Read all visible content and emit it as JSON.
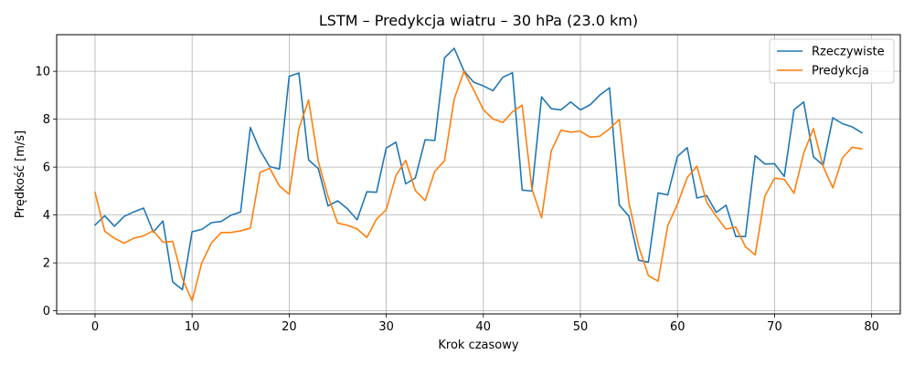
{
  "chart_data": {
    "type": "line",
    "title": "LSTM – Predykcja wiatru – 30 hPa (23.0 km)",
    "xlabel": "Krok czasowy",
    "ylabel": "Prędkość [m/s]",
    "xlim": [
      -3.95,
      82.95
    ],
    "ylim": [
      -0.13,
      11.53
    ],
    "xticks": [
      0,
      10,
      20,
      30,
      40,
      50,
      60,
      70,
      80
    ],
    "yticks": [
      0,
      2,
      4,
      6,
      8,
      10
    ],
    "grid": true,
    "legend_position": "top-right",
    "series": [
      {
        "name": "Rzeczywiste",
        "color": "#1f77b4",
        "values": [
          3.58,
          3.97,
          3.53,
          3.94,
          4.13,
          4.29,
          3.29,
          3.75,
          1.21,
          0.88,
          3.3,
          3.4,
          3.68,
          3.73,
          3.99,
          4.13,
          7.65,
          6.7,
          6.02,
          5.92,
          9.79,
          9.93,
          6.3,
          5.94,
          4.38,
          4.59,
          4.26,
          3.8,
          4.97,
          4.95,
          6.8,
          7.04,
          5.3,
          5.55,
          7.14,
          7.11,
          10.56,
          10.96,
          10.02,
          9.55,
          9.39,
          9.19,
          9.75,
          9.94,
          5.04,
          5.0,
          8.93,
          8.44,
          8.39,
          8.72,
          8.39,
          8.6,
          9.01,
          9.31,
          4.42,
          3.95,
          2.11,
          2.03,
          4.92,
          4.84,
          6.45,
          6.81,
          4.71,
          4.81,
          4.11,
          4.41,
          3.1,
          3.1,
          6.48,
          6.13,
          6.14,
          5.61,
          8.39,
          8.72,
          6.43,
          6.08,
          8.06,
          7.81,
          7.68,
          7.43
        ]
      },
      {
        "name": "Predykcja",
        "color": "#ff7f0e",
        "values": [
          4.95,
          3.32,
          3.03,
          2.82,
          3.03,
          3.13,
          3.34,
          2.86,
          2.9,
          1.35,
          0.42,
          2.0,
          2.84,
          3.27,
          3.27,
          3.34,
          3.45,
          5.78,
          5.95,
          5.21,
          4.87,
          7.6,
          8.8,
          6.23,
          4.78,
          3.66,
          3.57,
          3.42,
          3.06,
          3.83,
          4.22,
          5.65,
          6.28,
          5.02,
          4.6,
          5.82,
          6.27,
          8.84,
          9.99,
          9.23,
          8.4,
          8.01,
          7.86,
          8.31,
          8.59,
          5.1,
          3.88,
          6.68,
          7.54,
          7.46,
          7.5,
          7.25,
          7.29,
          7.6,
          7.99,
          4.51,
          2.69,
          1.47,
          1.24,
          3.56,
          4.45,
          5.56,
          6.04,
          4.53,
          3.94,
          3.41,
          3.5,
          2.68,
          2.33,
          4.79,
          5.54,
          5.49,
          4.91,
          6.58,
          7.61,
          6.03,
          5.13,
          6.39,
          6.83,
          6.76
        ]
      }
    ]
  }
}
